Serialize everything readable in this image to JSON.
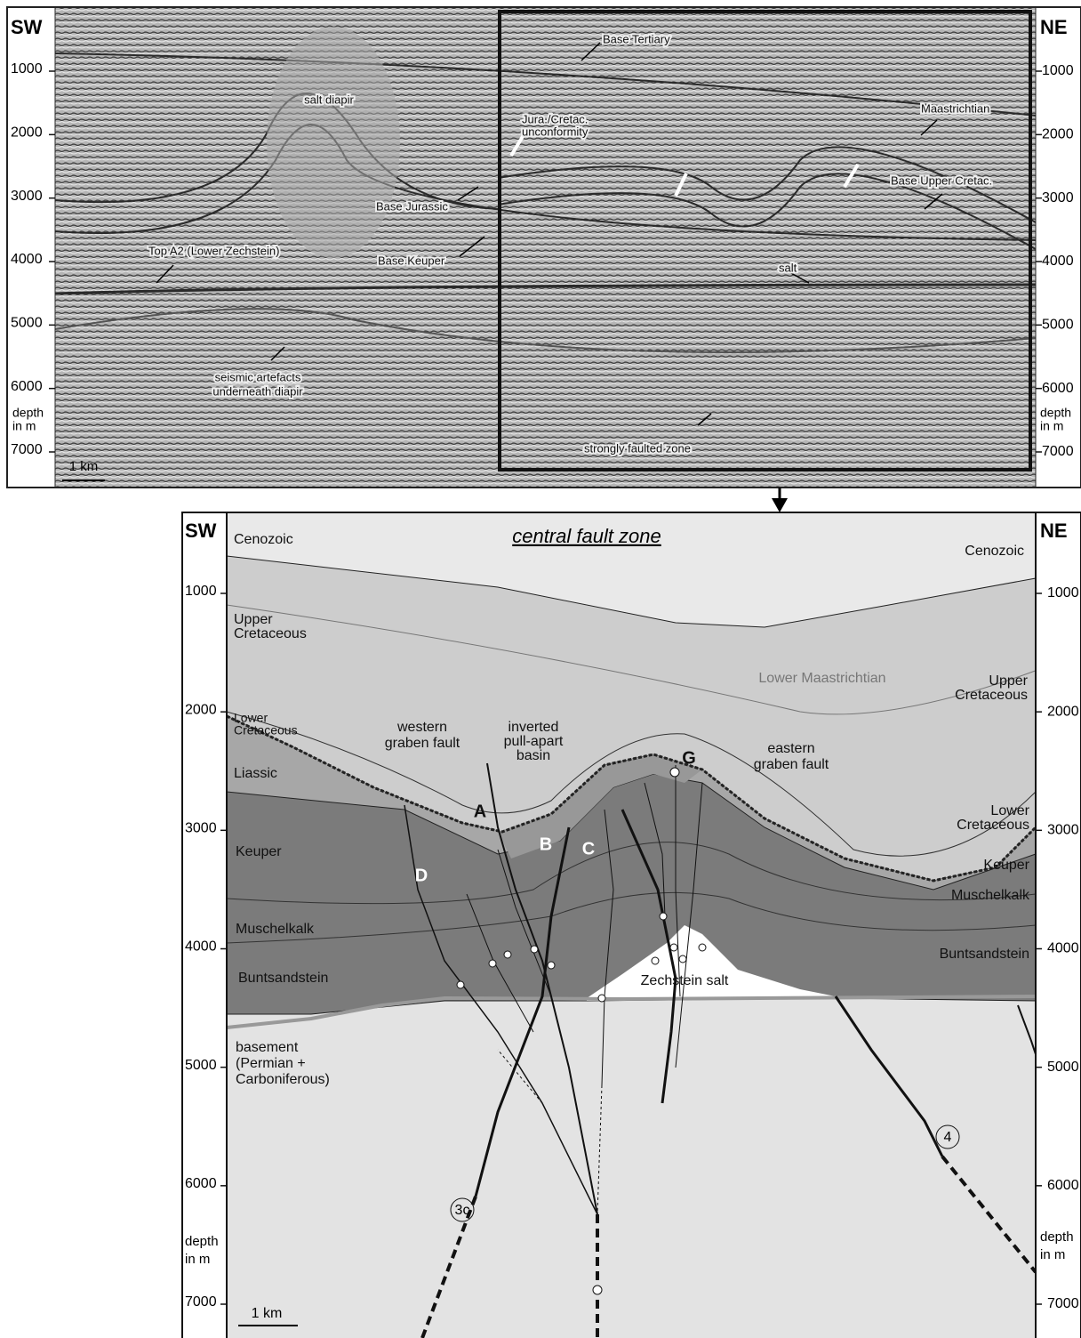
{
  "seismic_section": {
    "left_label": "SW",
    "right_label": "NE",
    "depth_ticks": [
      1000,
      2000,
      3000,
      4000,
      5000,
      6000,
      7000
    ],
    "depth_label": [
      "depth",
      "in m"
    ],
    "scale_bar": "1 km",
    "annotations": [
      [
        "Base Tertiary"
      ],
      [
        "salt diapir"
      ],
      [
        "Jura./Cretac.",
        "unconformity"
      ],
      [
        "Maastrichtian"
      ],
      [
        "Base Upper Cretac."
      ],
      [
        "Base Jurassic"
      ],
      [
        "Base Keuper"
      ],
      [
        "Top A2 (Lower Zechstein)"
      ],
      [
        "salt"
      ],
      [
        "seismic artefacts",
        "underneath diapir"
      ],
      [
        "strongly faulted zone"
      ]
    ]
  },
  "interpretation": {
    "title": "central fault zone",
    "left_label": "SW",
    "right_label": "NE",
    "depth_ticks": [
      1000,
      2000,
      3000,
      4000,
      5000,
      6000,
      7000
    ],
    "depth_label": [
      "depth",
      "in m"
    ],
    "scale_bar": "1 km",
    "labels": [
      [
        "Cenozoic"
      ],
      [
        "Cenozoic"
      ],
      [
        "Upper",
        "Cretaceous"
      ],
      [
        "Upper",
        "Cretaceous"
      ],
      [
        "Lower Maastrichtian"
      ],
      [
        "Lower",
        "Cretaceous"
      ],
      [
        "Lower",
        "Cretaceous"
      ],
      [
        "Liassic"
      ],
      [
        "Keuper"
      ],
      [
        "Keuper"
      ],
      [
        "Muschelkalk"
      ],
      [
        "Muschelkalk"
      ],
      [
        "Buntsandstein"
      ],
      [
        "Buntsandstein"
      ],
      [
        "Zechstein salt"
      ],
      [
        "basement",
        "(Permian +",
        "Carboniferous)"
      ],
      [
        "western",
        "graben fault"
      ],
      [
        "inverted",
        "pull-apart",
        "basin"
      ],
      [
        "eastern",
        "graben fault"
      ]
    ],
    "fault_labels": [
      "A",
      "B",
      "C",
      "D",
      "G"
    ],
    "fault_numbers": [
      "3c",
      "4"
    ]
  }
}
